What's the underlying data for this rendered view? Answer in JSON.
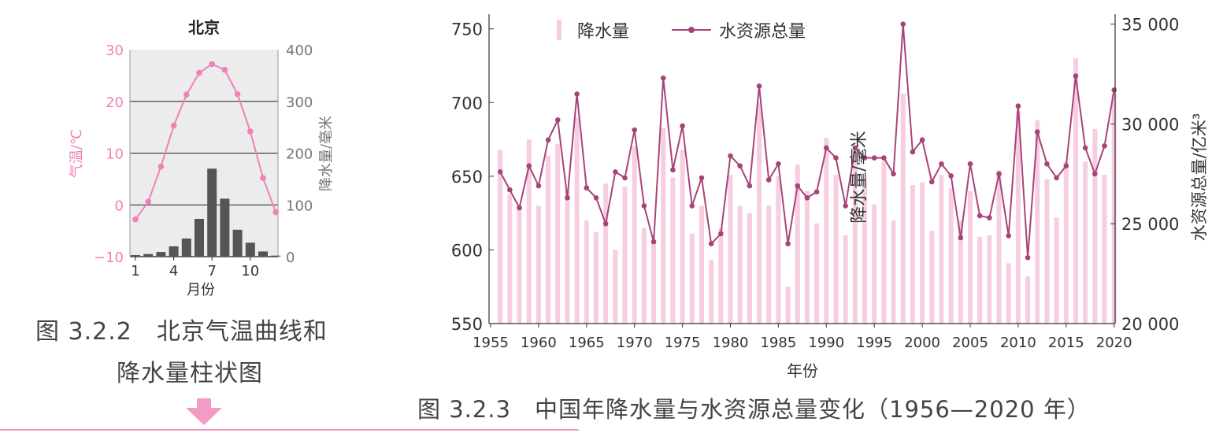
{
  "colors": {
    "temperature": "#ee82b8",
    "precipitation_bar": "#555555",
    "precip_annual_bar": "#f7cde1",
    "water_line": "#a8437a",
    "arrow": "#f49ac6",
    "rule": "#f49ac6",
    "plot_bg": "#ececec",
    "caption": "#444444"
  },
  "icons": {
    "down_arrow": "down-arrow-icon"
  },
  "figure1": {
    "caption_line1": "图 3.2.2　北京气温曲线和",
    "caption_line2": "降水量柱状图",
    "chart_data": {
      "type": "bar+line",
      "title": "北京",
      "xlabel": "月份",
      "ylabel_left": "气温/℃",
      "ylabel_right": "降水量/毫米",
      "x_ticks": [
        "1",
        "4",
        "7",
        "10"
      ],
      "y_left_ticks": [
        "30",
        "20",
        "10",
        "0",
        "−10"
      ],
      "y_right_ticks": [
        "400",
        "300",
        "200",
        "100",
        "0"
      ],
      "ylim_left": [
        -10,
        30
      ],
      "ylim_right": [
        0,
        400
      ],
      "months": [
        1,
        2,
        3,
        4,
        5,
        6,
        7,
        8,
        9,
        10,
        11,
        12
      ],
      "series": [
        {
          "name": "气温",
          "axis": "left",
          "type": "line",
          "values": [
            -2.8,
            0.6,
            7.4,
            15.3,
            21.3,
            25.5,
            27.2,
            26.1,
            21.4,
            14.2,
            5.2,
            -1.4
          ]
        },
        {
          "name": "降水量",
          "axis": "right",
          "type": "bar",
          "values": [
            3,
            5,
            9,
            20,
            35,
            73,
            170,
            112,
            52,
            27,
            10,
            2
          ]
        }
      ],
      "grid_y": true
    }
  },
  "figure2": {
    "caption": "图 3.2.3　中国年降水量与水资源总量变化（1956—2020 年）",
    "chart_data": {
      "type": "bar+line",
      "xlabel": "年份",
      "ylabel_left": "降水量/毫米",
      "ylabel_right": "水资源总量/亿米³",
      "x_ticks": [
        "1955",
        "1960",
        "1965",
        "1970",
        "1975",
        "1980",
        "1985",
        "1990",
        "1995",
        "2000",
        "2005",
        "2010",
        "2015",
        "2020"
      ],
      "y_left_ticks": [
        "750",
        "700",
        "650",
        "600",
        "550"
      ],
      "y_right_ticks": [
        "35 000",
        "30 000",
        "25 000",
        "20 000"
      ],
      "ylim_left": [
        550,
        760
      ],
      "ylim_right": [
        20000,
        35500
      ],
      "legend": {
        "bar_label": "降水量",
        "line_label": "水资源总量",
        "position": "top-left"
      },
      "years": [
        1956,
        1957,
        1958,
        1959,
        1960,
        1961,
        1962,
        1963,
        1964,
        1965,
        1966,
        1967,
        1968,
        1969,
        1970,
        1971,
        1972,
        1973,
        1974,
        1975,
        1976,
        1977,
        1978,
        1979,
        1980,
        1981,
        1982,
        1983,
        1984,
        1985,
        1986,
        1987,
        1988,
        1989,
        1990,
        1991,
        1992,
        1993,
        1994,
        1995,
        1996,
        1997,
        1998,
        1999,
        2000,
        2001,
        2002,
        2003,
        2004,
        2005,
        2006,
        2007,
        2008,
        2009,
        2010,
        2011,
        2012,
        2013,
        2014,
        2015,
        2016,
        2017,
        2018,
        2019,
        2020
      ],
      "series": [
        {
          "name": "降水量",
          "axis": "left",
          "type": "bar",
          "values": [
            668,
            638,
            628,
            675,
            630,
            664,
            672,
            640,
            690,
            620,
            612,
            645,
            600,
            643,
            670,
            615,
            605,
            683,
            649,
            668,
            611,
            630,
            593,
            615,
            651,
            630,
            625,
            700,
            630,
            650,
            575,
            658,
            640,
            618,
            676,
            651,
            610,
            666,
            648,
            631,
            660,
            620,
            706,
            644,
            646,
            613,
            651,
            642,
            620,
            640,
            609,
            610,
            654,
            591,
            694,
            582,
            688,
            648,
            622,
            660,
            730,
            660,
            682,
            651,
            706
          ]
        },
        {
          "name": "水资源总量",
          "axis": "right",
          "type": "line",
          "values": [
            27600,
            26700,
            25800,
            27900,
            26900,
            29200,
            30200,
            26300,
            31500,
            26800,
            26300,
            25000,
            27600,
            27300,
            29700,
            25900,
            24100,
            32300,
            27700,
            29900,
            25900,
            27300,
            24000,
            24500,
            28400,
            27900,
            26900,
            31900,
            27200,
            28000,
            24000,
            26900,
            26300,
            26600,
            28800,
            28300,
            25900,
            28800,
            28300,
            28300,
            28300,
            27500,
            35000,
            28600,
            29200,
            27100,
            28000,
            27400,
            24300,
            28000,
            25400,
            25300,
            27500,
            24400,
            30900,
            23300,
            29600,
            28000,
            27300,
            27900,
            32400,
            28800,
            27500,
            28900,
            31700
          ]
        }
      ]
    }
  }
}
